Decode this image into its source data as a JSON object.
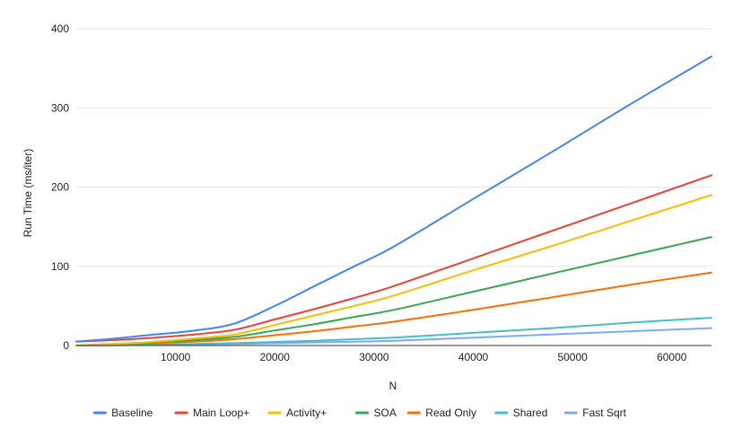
{
  "chart_data": {
    "type": "line",
    "title": "",
    "xlabel": "N",
    "ylabel": "Run Time (ms/iter)",
    "xlim": [
      0,
      64000
    ],
    "ylim": [
      0,
      400
    ],
    "xticks": [
      10000,
      20000,
      30000,
      40000,
      50000,
      60000
    ],
    "yticks": [
      0,
      100,
      200,
      300,
      400
    ],
    "grid": true,
    "legend_position": "bottom",
    "series": [
      {
        "name": "Baseline",
        "color": "#4285F4",
        "x": [
          0,
          4000,
          8000,
          12000,
          16000,
          20000,
          24000,
          28000,
          32000,
          40000,
          48000,
          56000,
          64000
        ],
        "y": [
          5,
          9,
          14,
          19,
          28,
          50,
          75,
          100,
          125,
          185,
          245,
          306,
          365
        ]
      },
      {
        "name": "Main Loop+",
        "color": "#EA4335",
        "x": [
          0,
          4000,
          8000,
          12000,
          16000,
          20000,
          24000,
          28000,
          32000,
          40000,
          48000,
          56000,
          64000
        ],
        "y": [
          5,
          7,
          10,
          14,
          20,
          33,
          46,
          60,
          75,
          110,
          145,
          180,
          215
        ]
      },
      {
        "name": "Activity+",
        "color": "#FBBC04",
        "x": [
          0,
          4000,
          8000,
          12000,
          16000,
          20000,
          24000,
          28000,
          32000,
          40000,
          48000,
          56000,
          64000
        ],
        "y": [
          0,
          2,
          5,
          9,
          14,
          26,
          38,
          50,
          63,
          95,
          126,
          158,
          190
        ]
      },
      {
        "name": "SOA",
        "color": "#34A853",
        "x": [
          0,
          4000,
          8000,
          12000,
          16000,
          20000,
          24000,
          28000,
          32000,
          40000,
          48000,
          56000,
          64000
        ],
        "y": [
          0,
          2,
          4,
          7,
          11,
          19,
          27,
          36,
          45,
          68,
          91,
          114,
          137
        ]
      },
      {
        "name": "Read Only",
        "color": "#FF6D01",
        "x": [
          0,
          4000,
          8000,
          12000,
          16000,
          20000,
          24000,
          28000,
          32000,
          40000,
          48000,
          56000,
          64000
        ],
        "y": [
          0,
          2,
          3,
          5,
          8,
          13,
          18,
          24,
          30,
          45,
          61,
          77,
          92
        ]
      },
      {
        "name": "Shared",
        "color": "#46BDC6",
        "x": [
          0,
          8000,
          16000,
          24000,
          32000,
          40000,
          48000,
          56000,
          64000
        ],
        "y": [
          0,
          1,
          3,
          6,
          10,
          16,
          22,
          29,
          35
        ]
      },
      {
        "name": "Fast Sqrt",
        "color": "#7BAAF7",
        "x": [
          0,
          8000,
          16000,
          24000,
          32000,
          40000,
          48000,
          56000,
          64000
        ],
        "y": [
          0,
          1,
          2,
          4,
          6,
          10,
          14,
          18,
          22
        ]
      }
    ]
  }
}
